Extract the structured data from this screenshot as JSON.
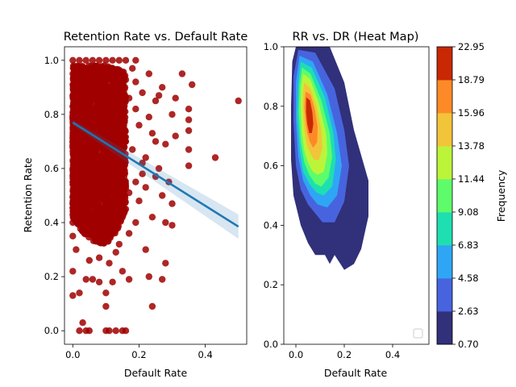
{
  "chart_data": [
    {
      "type": "scatter",
      "title": "Retention Rate vs. Default Rate",
      "xlabel": "Default Rate",
      "ylabel": "Retention Rate",
      "xlim": [
        -0.025,
        0.525
      ],
      "ylim": [
        -0.05,
        1.05
      ],
      "xticks": [
        0.0,
        0.2,
        0.4
      ],
      "yticks": [
        0.0,
        0.2,
        0.4,
        0.6,
        0.8,
        1.0
      ],
      "tick_labels_x": [
        "0.0",
        "0.2",
        "0.4"
      ],
      "tick_labels_y": [
        "0.0",
        "0.2",
        "0.4",
        "0.6",
        "0.8",
        "1.0"
      ],
      "point_color": "#a00000",
      "regression_color": "#1f77b4",
      "regression_line": {
        "x": [
          0.0,
          0.5
        ],
        "y": [
          0.77,
          0.385
        ]
      },
      "confidence_band": {
        "x": [
          0.0,
          0.5
        ],
        "upper": [
          0.78,
          0.43
        ],
        "lower": [
          0.76,
          0.34
        ]
      },
      "points": [
        [
          0.5,
          0.85
        ],
        [
          0.43,
          0.64
        ],
        [
          0.36,
          0.91
        ],
        [
          0.33,
          0.95
        ],
        [
          0.35,
          0.82
        ],
        [
          0.35,
          0.78
        ],
        [
          0.35,
          0.74
        ],
        [
          0.35,
          0.61
        ],
        [
          0.35,
          0.67
        ],
        [
          0.31,
          0.86
        ],
        [
          0.31,
          0.72
        ],
        [
          0.3,
          0.8
        ],
        [
          0.29,
          0.55
        ],
        [
          0.3,
          0.47
        ],
        [
          0.3,
          0.39
        ],
        [
          0.28,
          0.4
        ],
        [
          0.27,
          0.5
        ],
        [
          0.27,
          0.19
        ],
        [
          0.28,
          0.25
        ],
        [
          0.24,
          0.09
        ],
        [
          0.23,
          0.2
        ],
        [
          0.22,
          0.3
        ],
        [
          0.19,
          0.4
        ],
        [
          0.17,
          0.19
        ],
        [
          0.15,
          0.22
        ],
        [
          0.13,
          0.29
        ],
        [
          0.12,
          0.18
        ],
        [
          0.1,
          0.14
        ],
        [
          0.1,
          0.09
        ],
        [
          0.08,
          0.18
        ],
        [
          0.06,
          0.19
        ],
        [
          0.04,
          0.19
        ],
        [
          0.02,
          0.14
        ],
        [
          0.0,
          0.13
        ],
        [
          0.0,
          0.22
        ],
        [
          0.01,
          0.3
        ],
        [
          0.03,
          0.03
        ],
        [
          0.02,
          0.0
        ],
        [
          0.04,
          0.0
        ],
        [
          0.05,
          0.0
        ],
        [
          0.1,
          0.0
        ],
        [
          0.11,
          0.0
        ],
        [
          0.13,
          0.0
        ],
        [
          0.15,
          0.0
        ],
        [
          0.16,
          0.0
        ],
        [
          0.24,
          0.73
        ],
        [
          0.22,
          0.64
        ],
        [
          0.25,
          0.57
        ],
        [
          0.21,
          0.58
        ],
        [
          0.2,
          0.48
        ],
        [
          0.22,
          0.53
        ],
        [
          0.26,
          0.87
        ],
        [
          0.27,
          0.9
        ],
        [
          0.25,
          0.85
        ],
        [
          0.28,
          0.69
        ],
        [
          0.21,
          0.88
        ],
        [
          0.19,
          0.92
        ],
        [
          0.23,
          0.95
        ],
        [
          0.18,
          0.97
        ],
        [
          0.19,
          1.0
        ],
        [
          0.16,
          1.0
        ],
        [
          0.14,
          1.0
        ],
        [
          0.12,
          1.0
        ],
        [
          0.1,
          1.0
        ],
        [
          0.08,
          1.0
        ],
        [
          0.06,
          1.0
        ],
        [
          0.04,
          1.0
        ],
        [
          0.02,
          1.0
        ],
        [
          0.0,
          1.0
        ],
        [
          0.0,
          0.4
        ],
        [
          0.0,
          0.35
        ],
        [
          0.02,
          0.43
        ],
        [
          0.05,
          0.26
        ],
        [
          0.08,
          0.27
        ],
        [
          0.11,
          0.25
        ],
        [
          0.14,
          0.32
        ],
        [
          0.17,
          0.36
        ],
        [
          0.24,
          0.42
        ],
        [
          0.26,
          0.6
        ],
        [
          0.23,
          0.79
        ],
        [
          0.25,
          0.7
        ],
        [
          0.2,
          0.76
        ],
        [
          0.21,
          0.62
        ],
        [
          0.18,
          0.67
        ],
        [
          0.19,
          0.55
        ],
        [
          0.17,
          0.51
        ],
        [
          0.16,
          0.45
        ],
        [
          0.19,
          0.82
        ],
        [
          0.17,
          0.86
        ],
        [
          0.14,
          0.91
        ],
        [
          0.11,
          0.94
        ],
        [
          0.07,
          0.95
        ],
        [
          0.03,
          0.96
        ],
        [
          0.0,
          0.87
        ],
        [
          0.0,
          0.7
        ],
        [
          0.0,
          0.55
        ],
        [
          0.0,
          0.47
        ],
        [
          0.01,
          0.62
        ],
        [
          0.01,
          0.78
        ],
        [
          0.01,
          0.92
        ]
      ],
      "dense_region": {
        "x0": 0.0,
        "x1": 0.16,
        "y_top": [
          0.98,
          0.98,
          0.98,
          0.98,
          0.97,
          0.96
        ],
        "y_bot": [
          0.42,
          0.36,
          0.33,
          0.32,
          0.35,
          0.45
        ]
      }
    },
    {
      "type": "heatmap",
      "title": "RR vs. DR (Heat Map)",
      "xlabel": "Default Rate",
      "ylabel": "",
      "xlim": [
        -0.05,
        0.55
      ],
      "ylim": [
        0.0,
        1.0
      ],
      "xticks": [
        0.0,
        0.2,
        0.4
      ],
      "yticks": [
        0.0,
        0.2,
        0.4,
        0.6,
        0.8,
        1.0
      ],
      "tick_labels_x": [
        "0.0",
        "0.2",
        "0.4"
      ],
      "tick_labels_y": [
        "0.0",
        "0.2",
        "0.4",
        "0.6",
        "0.8",
        "1.0"
      ],
      "kde_center": [
        0.04,
        0.76
      ],
      "colorbar": {
        "label": "Frequency",
        "levels": [
          0.7,
          2.63,
          4.58,
          6.83,
          9.08,
          11.44,
          13.78,
          15.96,
          18.79,
          22.95
        ],
        "level_labels": [
          "0.70",
          "2.63",
          "4.58",
          "6.83",
          "9.08",
          "11.44",
          "13.78",
          "15.96",
          "18.79",
          "22.95"
        ],
        "colors": [
          "#31307a",
          "#4764de",
          "#2fa6f5",
          "#1edfb0",
          "#5efc6b",
          "#bcf43a",
          "#f2c43a",
          "#fd8a27",
          "#c82803"
        ]
      }
    }
  ]
}
